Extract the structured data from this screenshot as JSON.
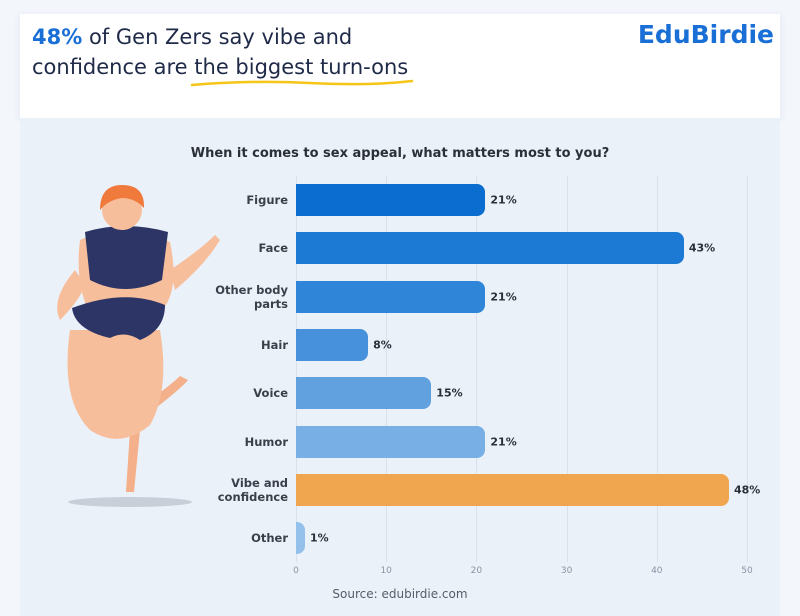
{
  "header": {
    "title_parts": [
      "48%",
      "of Gen Zers say vibe and confidence are",
      "the biggest turn-ons"
    ],
    "brand": "EduBirdie"
  },
  "chart_data": {
    "type": "bar",
    "orientation": "horizontal",
    "title": "When it comes to sex appeal, what matters most to you?",
    "categories": [
      "Figure",
      "Face",
      "Other body parts",
      "Hair",
      "Voice",
      "Humor",
      "Vibe and confidence",
      "Other"
    ],
    "values": [
      21,
      43,
      21,
      8,
      15,
      21,
      48,
      1
    ],
    "value_labels": [
      "21%",
      "43%",
      "21%",
      "8%",
      "15%",
      "21%",
      "48%",
      "1%"
    ],
    "colors": [
      "#0a6dcf",
      "#1c79d4",
      "#2f86d8",
      "#4791dc",
      "#61a1e0",
      "#78b0e6",
      "#f0a64e",
      "#94c1ec"
    ],
    "xlim": [
      0,
      50
    ],
    "xticks": [
      0,
      10,
      20,
      30,
      40,
      50
    ],
    "grid": true,
    "source": "Source: edubirdie.com"
  }
}
